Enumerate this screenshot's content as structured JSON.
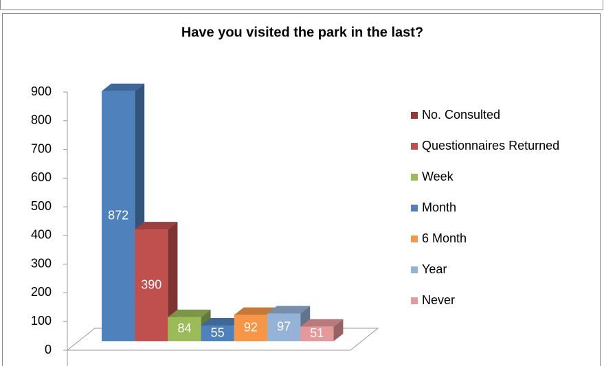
{
  "chart_data": {
    "type": "bar3d",
    "title": "Have you visited the park in the last?",
    "categories": [
      null
    ],
    "series": [
      {
        "name": "No. Consulted",
        "color": "#4f81bd",
        "legend_color": "#953735",
        "values": [
          872
        ]
      },
      {
        "name": "Questionnaires Returned",
        "color": "#c0504d",
        "legend_color": "#c0504d",
        "values": [
          390
        ]
      },
      {
        "name": "Week",
        "color": "#9bbb59",
        "legend_color": "#9bbb59",
        "values": [
          84
        ]
      },
      {
        "name": "Month",
        "color": "#4f81bd",
        "legend_color": "#4f81bd",
        "values": [
          55
        ]
      },
      {
        "name": "6 Month",
        "color": "#f79646",
        "legend_color": "#f79646",
        "values": [
          92
        ]
      },
      {
        "name": "Year",
        "color": "#95b3d7",
        "legend_color": "#95b3d7",
        "values": [
          97
        ]
      },
      {
        "name": "Never",
        "color": "#e6999b",
        "legend_color": "#e6999b",
        "values": [
          51
        ]
      }
    ],
    "ylim": [
      0,
      900
    ],
    "yticks": [
      0,
      100,
      200,
      300,
      400,
      500,
      600,
      700,
      800,
      900
    ],
    "legend": "right"
  }
}
